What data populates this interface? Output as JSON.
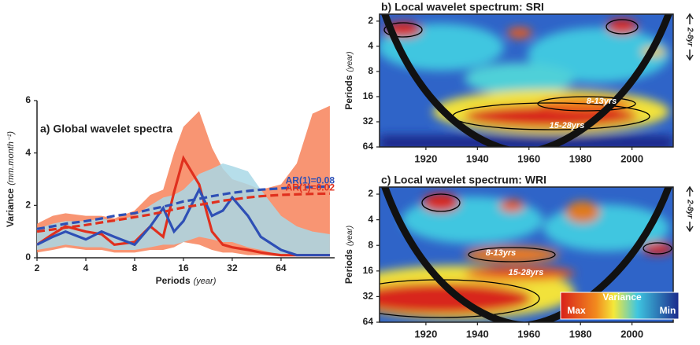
{
  "chart_data": [
    {
      "type": "line",
      "title": "a) Global wavelet spectra",
      "x_label": "Periods",
      "x_unit": "(year)",
      "y_label": "Variance",
      "y_unit": "(mm.month⁻¹)",
      "x_scale": "log",
      "xlim": [
        2,
        137
      ],
      "xticks": [
        2,
        4,
        8,
        16,
        32,
        64
      ],
      "ylim": [
        0,
        6
      ],
      "yticks": [
        0,
        2,
        4,
        6
      ],
      "x": [
        2,
        2.5,
        3,
        4,
        5,
        6,
        8,
        10,
        12,
        14,
        16,
        20,
        24,
        28,
        32,
        40,
        48,
        64,
        80,
        100,
        128
      ],
      "bands": [
        {
          "color": "#f7835a",
          "upper": [
            1.3,
            1.6,
            1.7,
            1.6,
            1.6,
            1.5,
            1.8,
            2.4,
            2.6,
            4.0,
            5.0,
            5.6,
            4.2,
            3.4,
            3.0,
            2.8,
            2.6,
            2.8,
            3.6,
            5.5,
            5.8
          ],
          "lower": [
            0.2,
            0.3,
            0.4,
            0.3,
            0.3,
            0.2,
            0.2,
            0.3,
            0.3,
            0.4,
            0.6,
            0.5,
            0.3,
            0.2,
            0.2,
            0.1,
            0.1,
            0.05,
            0.05,
            0.05,
            0.05
          ]
        },
        {
          "color": "#a9d8e6",
          "upper": [
            1.1,
            1.3,
            1.4,
            1.4,
            1.5,
            1.4,
            1.6,
            2.0,
            2.3,
            2.4,
            2.6,
            3.2,
            3.4,
            3.6,
            3.5,
            3.3,
            2.6,
            1.6,
            1.2,
            1.0,
            0.9
          ],
          "lower": [
            0.3,
            0.4,
            0.5,
            0.4,
            0.4,
            0.3,
            0.3,
            0.4,
            0.5,
            0.5,
            0.6,
            0.8,
            0.7,
            0.6,
            0.6,
            0.4,
            0.3,
            0.1,
            0.05,
            0.05,
            0.05
          ]
        }
      ],
      "series": [
        {
          "color": "#e0301e",
          "values": [
            0.5,
            0.9,
            1.2,
            1.0,
            0.9,
            0.5,
            0.6,
            1.2,
            0.8,
            2.5,
            3.8,
            2.8,
            1.0,
            0.5,
            0.4,
            0.3,
            0.2,
            0.1,
            0.1,
            0.1,
            0.1
          ]
        },
        {
          "color": "#2e4fb5",
          "values": [
            0.5,
            0.8,
            1.0,
            0.7,
            1.0,
            0.8,
            0.5,
            1.2,
            1.9,
            1.0,
            1.4,
            2.6,
            1.6,
            1.8,
            2.3,
            1.6,
            0.8,
            0.3,
            0.1,
            0.1,
            0.1
          ]
        },
        {
          "name": "AR(1)=0.08",
          "color": "#2e4fb5",
          "dash": true,
          "values": [
            1.1,
            1.2,
            1.3,
            1.4,
            1.5,
            1.6,
            1.7,
            1.85,
            1.95,
            2.05,
            2.15,
            2.25,
            2.35,
            2.42,
            2.48,
            2.55,
            2.6,
            2.65,
            2.68,
            2.7,
            2.72
          ]
        },
        {
          "name": "AR(1)=0.02",
          "color": "#e0301e",
          "dash": true,
          "values": [
            1.0,
            1.08,
            1.15,
            1.25,
            1.35,
            1.42,
            1.55,
            1.65,
            1.75,
            1.85,
            1.92,
            2.02,
            2.1,
            2.18,
            2.22,
            2.3,
            2.35,
            2.4,
            2.42,
            2.44,
            2.45
          ]
        }
      ]
    },
    {
      "type": "heatmap",
      "title": "b) Local wavelet spectrum: SRI",
      "y_label": "Periods",
      "y_unit": "(year)",
      "side_label": "2-8yr",
      "xlim": [
        1902,
        2016
      ],
      "xticks": [
        1920,
        1940,
        1960,
        1980,
        2000
      ],
      "y_scale": "log",
      "ylim": [
        1.65,
        64
      ],
      "yticks": [
        2,
        4,
        8,
        16,
        32,
        64
      ],
      "annotations": [
        "8-13yrs",
        "15-28yrs"
      ]
    },
    {
      "type": "heatmap",
      "title": "c) Local wavelet spectrum: WRI",
      "y_label": "Periods",
      "y_unit": "(year)",
      "side_label": "2-8yr",
      "xlim": [
        1902,
        2016
      ],
      "xticks": [
        1920,
        1940,
        1960,
        1980,
        2000
      ],
      "y_scale": "log",
      "ylim": [
        1.65,
        64
      ],
      "yticks": [
        2,
        4,
        8,
        16,
        32,
        64
      ],
      "annotations": [
        "8-13yrs",
        "15-28yrs"
      ],
      "colorbar": {
        "title": "Variance",
        "min_label": "Min",
        "max_label": "Max"
      }
    }
  ]
}
